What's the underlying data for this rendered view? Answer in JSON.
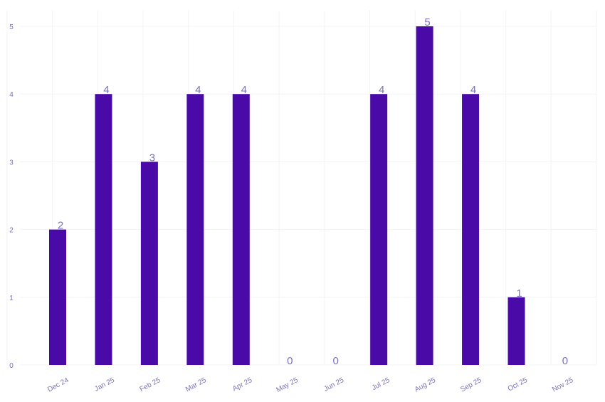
{
  "chart_data": {
    "type": "bar",
    "categories": [
      "Dec 24",
      "Jan 25",
      "Feb 25",
      "Mar 25",
      "Apr 25",
      "May 25",
      "Jun 25",
      "Jul 25",
      "Aug 25",
      "Sep 25",
      "Oct 25",
      "Nov 25"
    ],
    "values": [
      2,
      4,
      3,
      4,
      4,
      0,
      0,
      4,
      5,
      4,
      1,
      0
    ],
    "title": "",
    "xlabel": "",
    "ylabel": "",
    "ylim": [
      0,
      5
    ],
    "yticks": [
      "0",
      "1",
      "2",
      "3",
      "4",
      "5"
    ],
    "grid": true,
    "legend": "none",
    "data_labels": true,
    "x_tick_rotation": "angled",
    "colors": {
      "bar": "#4a0aa8",
      "label": "#7b72b8",
      "grid": "#f3f3f6"
    }
  }
}
